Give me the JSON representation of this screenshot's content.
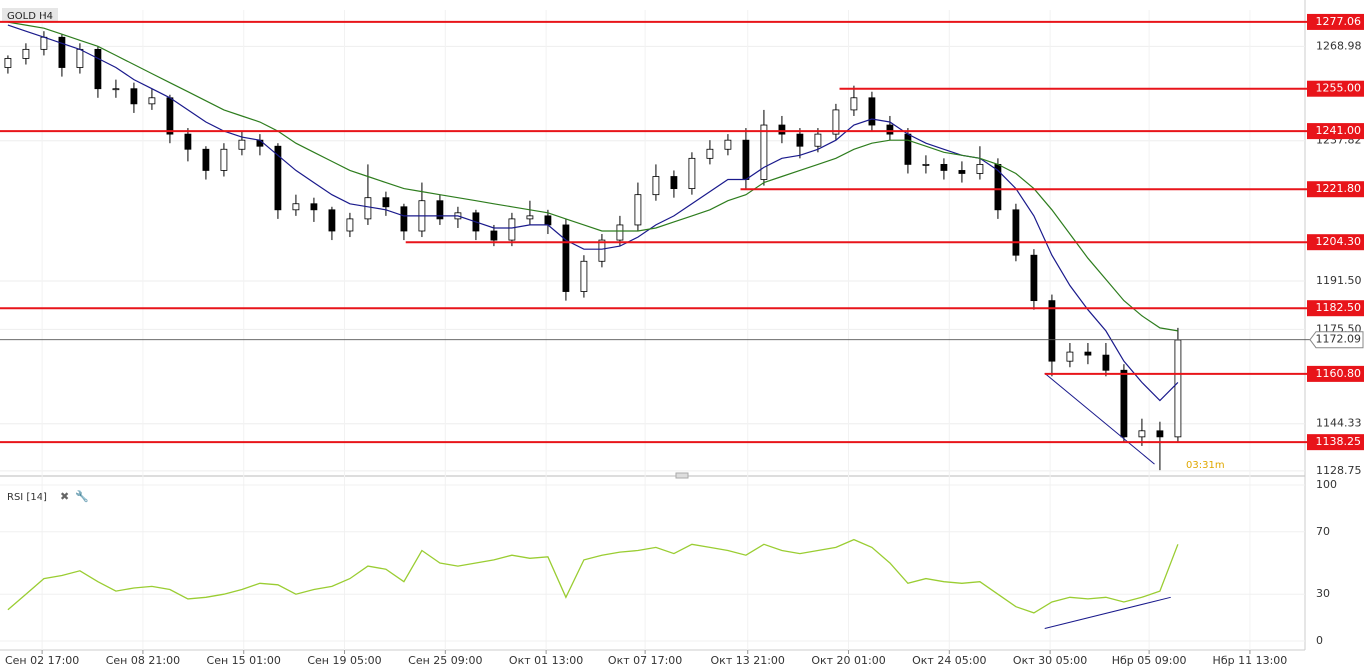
{
  "chart_data": {
    "type": "candlestick",
    "title": "GOLD H4",
    "xlim": [
      -0.44,
      72.06
    ],
    "ylim": [
      1127.4,
      1281
    ],
    "xticks": [
      {
        "value": 1.9,
        "label": "Сен 02 17:00"
      },
      {
        "value": 7.5,
        "label": "Сен 08 21:00"
      },
      {
        "value": 13.1,
        "label": "Сен 15 01:00"
      },
      {
        "value": 18.7,
        "label": "Сен 19 05:00"
      },
      {
        "value": 24.3,
        "label": "Сен 25 09:00"
      },
      {
        "value": 29.9,
        "label": "Окт 01 13:00"
      },
      {
        "value": 35.4,
        "label": "Окт 07 17:00"
      },
      {
        "value": 41.1,
        "label": "Окт 13 21:00"
      },
      {
        "value": 46.7,
        "label": "Окт 20 01:00"
      },
      {
        "value": 52.3,
        "label": "Окт 24 05:00"
      },
      {
        "value": 57.9,
        "label": "Окт 30 05:00"
      },
      {
        "value": 63.4,
        "label": "Нбр 05 09:00"
      },
      {
        "value": 69,
        "label": "Нбр 11 13:00"
      }
    ],
    "yticks": [
      {
        "value": 1268.98,
        "label": "1268.98"
      },
      {
        "value": 1237.82,
        "label": "1237.82"
      },
      {
        "value": 1191.5,
        "label": "1191.50"
      },
      {
        "value": 1175.5,
        "label": "1175.50"
      },
      {
        "value": 1144.33,
        "label": "1144.33"
      },
      {
        "value": 1128.75,
        "label": "1128.75"
      }
    ],
    "candles": [
      [
        1262,
        1266,
        1260,
        1265
      ],
      [
        1265,
        1270,
        1263,
        1268
      ],
      [
        1268,
        1274,
        1266,
        1272
      ],
      [
        1272,
        1273,
        1259,
        1262
      ],
      [
        1262,
        1270,
        1260,
        1268
      ],
      [
        1268,
        1269,
        1252,
        1255
      ],
      [
        1255,
        1258,
        1252,
        1255
      ],
      [
        1255,
        1257,
        1247,
        1250
      ],
      [
        1250,
        1255,
        1248,
        1252
      ],
      [
        1252,
        1253,
        1237,
        1240
      ],
      [
        1240,
        1242,
        1231,
        1235
      ],
      [
        1235,
        1236,
        1225,
        1228
      ],
      [
        1228,
        1237,
        1226,
        1235
      ],
      [
        1235,
        1241,
        1233,
        1238
      ],
      [
        1238,
        1240,
        1233,
        1236
      ],
      [
        1236,
        1237,
        1212,
        1215
      ],
      [
        1215,
        1220,
        1213,
        1217
      ],
      [
        1217,
        1219,
        1211,
        1215
      ],
      [
        1215,
        1216,
        1205,
        1208
      ],
      [
        1208,
        1214,
        1206,
        1212
      ],
      [
        1212,
        1230,
        1210,
        1219
      ],
      [
        1219,
        1221,
        1213,
        1216
      ],
      [
        1216,
        1217,
        1205,
        1208
      ],
      [
        1208,
        1224,
        1206,
        1218
      ],
      [
        1218,
        1220,
        1210,
        1212
      ],
      [
        1212,
        1216,
        1209,
        1214
      ],
      [
        1214,
        1215,
        1205,
        1208
      ],
      [
        1208,
        1210,
        1203,
        1205
      ],
      [
        1205,
        1214,
        1203,
        1212
      ],
      [
        1212,
        1218,
        1210,
        1213
      ],
      [
        1213,
        1215,
        1207,
        1210
      ],
      [
        1210,
        1212,
        1185,
        1188
      ],
      [
        1188,
        1200,
        1186,
        1198
      ],
      [
        1198,
        1207,
        1196,
        1205
      ],
      [
        1205,
        1213,
        1203,
        1210
      ],
      [
        1210,
        1224,
        1208,
        1220
      ],
      [
        1220,
        1230,
        1218,
        1226
      ],
      [
        1226,
        1228,
        1219,
        1222
      ],
      [
        1222,
        1234,
        1220,
        1232
      ],
      [
        1232,
        1238,
        1230,
        1235
      ],
      [
        1235,
        1240,
        1233,
        1238
      ],
      [
        1238,
        1242,
        1222,
        1225
      ],
      [
        1225,
        1248,
        1223,
        1243
      ],
      [
        1243,
        1246,
        1237,
        1240
      ],
      [
        1240,
        1242,
        1232,
        1236
      ],
      [
        1236,
        1242,
        1234,
        1240
      ],
      [
        1240,
        1250,
        1238,
        1248
      ],
      [
        1248,
        1256,
        1246,
        1252
      ],
      [
        1252,
        1254,
        1241,
        1243
      ],
      [
        1243,
        1246,
        1238,
        1240
      ],
      [
        1240,
        1242,
        1227,
        1230
      ],
      [
        1230,
        1233,
        1227,
        1230
      ],
      [
        1230,
        1232,
        1225,
        1228
      ],
      [
        1228,
        1231,
        1224,
        1227
      ],
      [
        1227,
        1236,
        1225,
        1230
      ],
      [
        1230,
        1232,
        1212,
        1215
      ],
      [
        1215,
        1217,
        1198,
        1200
      ],
      [
        1200,
        1202,
        1182,
        1185
      ],
      [
        1185,
        1187,
        1160,
        1165
      ],
      [
        1165,
        1171,
        1163,
        1168
      ],
      [
        1168,
        1171,
        1164,
        1167
      ],
      [
        1167,
        1171,
        1160,
        1162
      ],
      [
        1162,
        1164,
        1138,
        1140
      ],
      [
        1140,
        1146,
        1137,
        1142
      ],
      [
        1142,
        1145,
        1129,
        1140
      ],
      [
        1140,
        1176,
        1138,
        1172
      ]
    ],
    "series": [
      {
        "color": "#1a1a8c",
        "values": [
          1276,
          1274,
          1272,
          1270,
          1268,
          1265,
          1262,
          1258,
          1255,
          1252,
          1248,
          1244,
          1241,
          1239,
          1238,
          1233,
          1228,
          1224,
          1220,
          1217,
          1216,
          1215,
          1213,
          1213,
          1213,
          1213,
          1211,
          1209,
          1209,
          1210,
          1210,
          1205,
          1202,
          1202,
          1203,
          1206,
          1210,
          1213,
          1217,
          1221,
          1225,
          1225,
          1229,
          1232,
          1233,
          1235,
          1238,
          1243,
          1245,
          1244,
          1240,
          1237,
          1235,
          1233,
          1232,
          1228,
          1222,
          1213,
          1200,
          1190,
          1182,
          1175,
          1165,
          1158,
          1152,
          1158
        ]
      },
      {
        "color": "#2e7d1e",
        "values": [
          1277,
          1276,
          1275,
          1273,
          1271,
          1269,
          1266,
          1263,
          1260,
          1257,
          1254,
          1251,
          1248,
          1246,
          1244,
          1241,
          1237,
          1234,
          1231,
          1228,
          1226,
          1224,
          1222,
          1221,
          1220,
          1219,
          1218,
          1217,
          1216,
          1215,
          1214,
          1212,
          1210,
          1208,
          1208,
          1208,
          1209,
          1211,
          1213,
          1215,
          1218,
          1220,
          1224,
          1226,
          1228,
          1230,
          1232,
          1235,
          1237,
          1238,
          1238,
          1236,
          1234,
          1233,
          1232,
          1230,
          1227,
          1222,
          1215,
          1207,
          1199,
          1192,
          1185,
          1180,
          1176,
          1175
        ]
      }
    ],
    "levels": [
      {
        "value": 1277.06,
        "label": "1277.06"
      },
      {
        "value": 1255,
        "label": "1255.00",
        "from": 46.2
      },
      {
        "value": 1241,
        "label": "1241.00"
      },
      {
        "value": 1221.8,
        "label": "1221.80",
        "from": 40.7
      },
      {
        "value": 1204.3,
        "label": "1204.30",
        "from": 22.1
      },
      {
        "value": 1182.5,
        "label": "1182.50"
      },
      {
        "value": 1160.8,
        "label": "1160.80",
        "from": 57.6
      },
      {
        "value": 1138.25,
        "label": "1138.25"
      }
    ],
    "level_color": "#e8141a",
    "current_price": 1172.09,
    "trendline": {
      "x": [
        57.6,
        63.7
      ],
      "y": [
        1161,
        1131
      ]
    },
    "timer": "03:31m",
    "indicator": {
      "title": "RSI [14]",
      "color": "#9acd32",
      "ylim": [
        0,
        100
      ],
      "yticks": [
        100,
        70,
        30,
        0
      ],
      "values": [
        20,
        30,
        40,
        42,
        45,
        38,
        32,
        34,
        35,
        33,
        27,
        28,
        30,
        33,
        37,
        36,
        30,
        33,
        35,
        40,
        48,
        46,
        38,
        58,
        50,
        48,
        50,
        52,
        55,
        53,
        54,
        28,
        52,
        55,
        57,
        58,
        60,
        56,
        62,
        60,
        58,
        55,
        62,
        58,
        56,
        58,
        60,
        65,
        60,
        50,
        37,
        40,
        38,
        37,
        38,
        30,
        22,
        18,
        25,
        28,
        27,
        28,
        25,
        28,
        32,
        62
      ],
      "trendline": {
        "x": [
          57.6,
          64.6
        ],
        "y": [
          8,
          28
        ]
      }
    }
  }
}
